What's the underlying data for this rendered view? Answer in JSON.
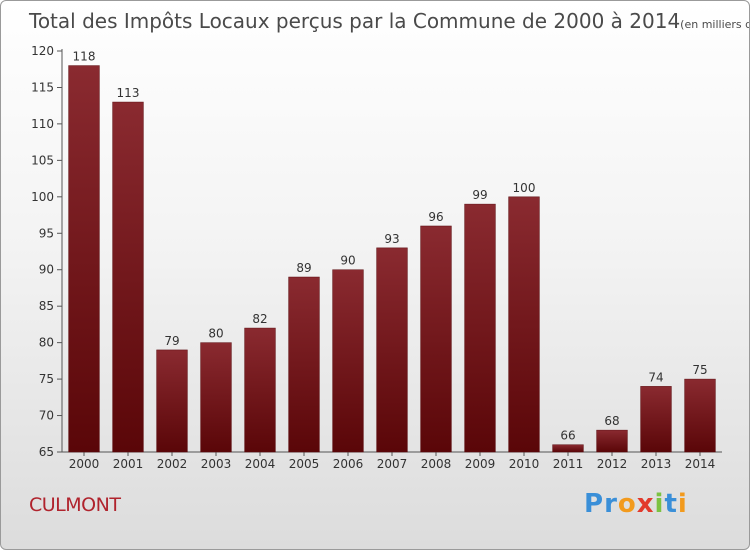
{
  "chart_data": {
    "type": "bar",
    "title": "Total des Impôts Locaux perçus par la Commune de 2000 à 2014",
    "subtitle": "(en milliers d'€)",
    "categories": [
      "2000",
      "2001",
      "2002",
      "2003",
      "2004",
      "2005",
      "2006",
      "2007",
      "2008",
      "2009",
      "2010",
      "2011",
      "2012",
      "2013",
      "2014"
    ],
    "values": [
      118,
      113,
      79,
      80,
      82,
      89,
      90,
      93,
      96,
      99,
      100,
      66,
      68,
      74,
      75
    ],
    "ylim": [
      65,
      120
    ],
    "yticks": [
      65,
      70,
      75,
      80,
      85,
      90,
      95,
      100,
      105,
      110,
      115,
      120
    ],
    "xlabel": "",
    "ylabel": "",
    "grid": false,
    "bar_color": "#7a1a20"
  },
  "commune": "CULMONT",
  "logo": {
    "letters": [
      "P",
      "r",
      "o",
      "x",
      "i",
      "t",
      "i"
    ],
    "colors": [
      "#3a8fd8",
      "#3a8fd8",
      "#f29a1d",
      "#e23a2c",
      "#7cc242",
      "#3a8fd8",
      "#f29a1d"
    ]
  }
}
